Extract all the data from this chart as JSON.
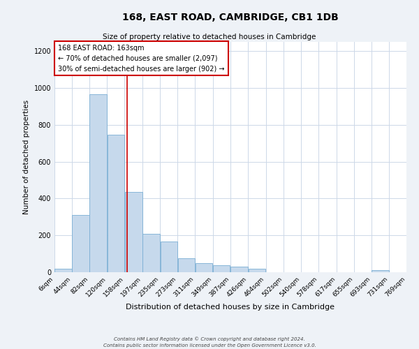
{
  "title": "168, EAST ROAD, CAMBRIDGE, CB1 1DB",
  "subtitle": "Size of property relative to detached houses in Cambridge",
  "xlabel": "Distribution of detached houses by size in Cambridge",
  "ylabel": "Number of detached properties",
  "bar_left_edges": [
    6,
    44,
    82,
    120,
    158,
    197,
    235,
    273,
    311,
    349,
    387,
    426,
    464,
    502,
    540,
    578,
    617,
    655,
    693,
    731
  ],
  "bar_widths": [
    38,
    38,
    38,
    38,
    39,
    38,
    38,
    38,
    38,
    38,
    39,
    38,
    38,
    38,
    38,
    39,
    38,
    38,
    38,
    38
  ],
  "bar_heights": [
    20,
    310,
    965,
    748,
    435,
    210,
    165,
    75,
    50,
    38,
    30,
    18,
    0,
    0,
    0,
    0,
    0,
    0,
    10,
    0
  ],
  "bar_color": "#c6d9ec",
  "bar_edgecolor": "#7bafd4",
  "tick_labels": [
    "6sqm",
    "44sqm",
    "82sqm",
    "120sqm",
    "158sqm",
    "197sqm",
    "235sqm",
    "273sqm",
    "311sqm",
    "349sqm",
    "387sqm",
    "426sqm",
    "464sqm",
    "502sqm",
    "540sqm",
    "578sqm",
    "617sqm",
    "655sqm",
    "693sqm",
    "731sqm",
    "769sqm"
  ],
  "ylim": [
    0,
    1250
  ],
  "yticks": [
    0,
    200,
    400,
    600,
    800,
    1000,
    1200
  ],
  "red_line_x": 163,
  "annotation_title": "168 EAST ROAD: 163sqm",
  "annotation_line1": "← 70% of detached houses are smaller (2,097)",
  "annotation_line2": "30% of semi-detached houses are larger (902) →",
  "annotation_box_color": "#ffffff",
  "annotation_border_color": "#cc0000",
  "footer1": "Contains HM Land Registry data © Crown copyright and database right 2024.",
  "footer2": "Contains public sector information licensed under the Open Government Licence v3.0.",
  "bg_color": "#eef2f7",
  "plot_bg_color": "#ffffff",
  "grid_color": "#cdd8e8"
}
